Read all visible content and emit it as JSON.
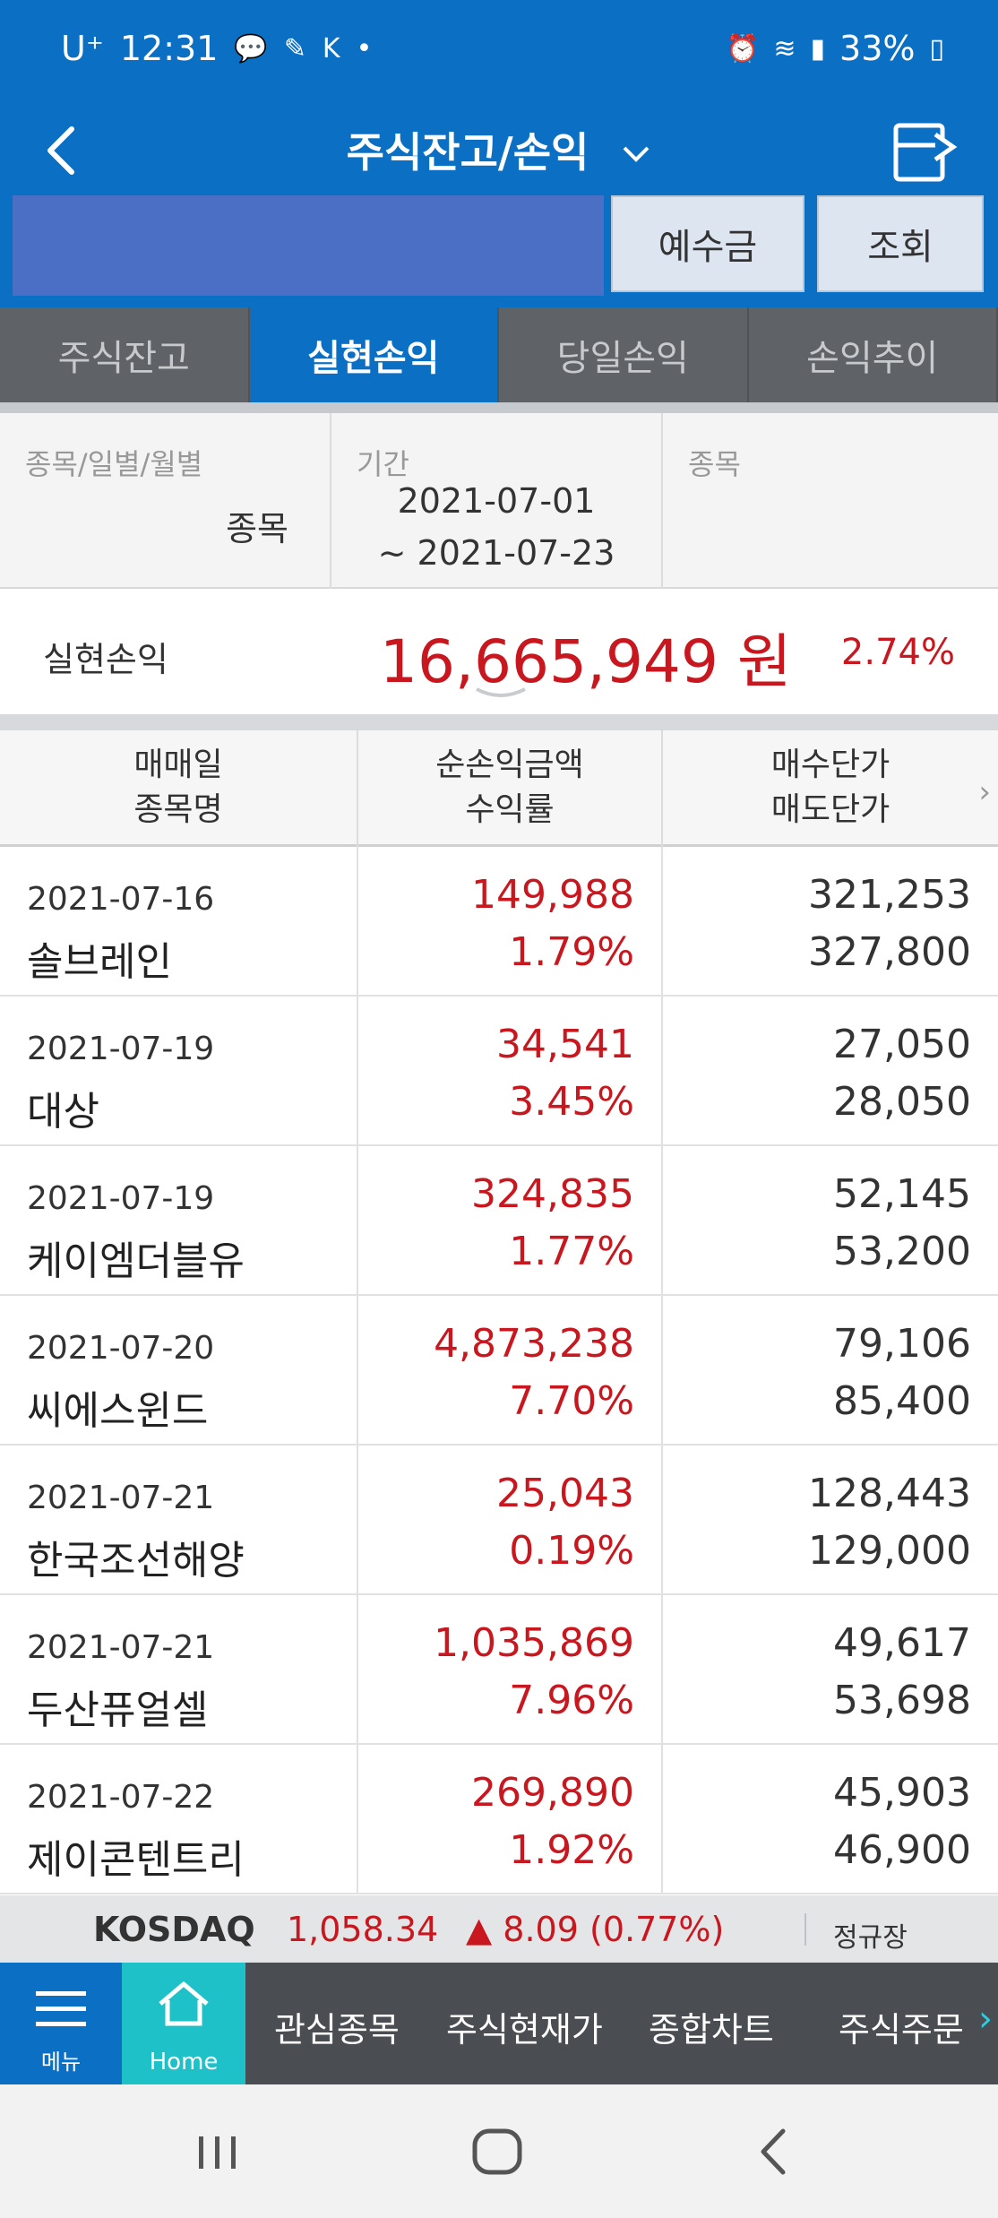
{
  "status_bar": {
    "carrier": "U⁺",
    "time": "12:31",
    "battery": "33%",
    "icons": [
      "talk-icon",
      "pill-icon",
      "ks-icon",
      "dot-icon",
      "alarm-icon",
      "wifi-icon",
      "signal-icon",
      "battery-icon"
    ]
  },
  "header": {
    "title": "주식잔고/손익",
    "chevron": "⌄"
  },
  "account": {
    "deposit_label": "예수금",
    "query_label": "조회"
  },
  "tabs": [
    {
      "label": "주식잔고",
      "active": false
    },
    {
      "label": "실현손익",
      "active": true
    },
    {
      "label": "당일손익",
      "active": false
    },
    {
      "label": "손익추이",
      "active": false
    }
  ],
  "filter": {
    "type_label": "종목/일별/월별",
    "type_value": "종목",
    "period_label": "기간",
    "period_start": "2021-07-01",
    "period_end": "~ 2021-07-23",
    "stock_label": "종목"
  },
  "summary": {
    "label": "실현손익",
    "amount": "16,665,949 원",
    "rate": "2.74%"
  },
  "table": {
    "headers": {
      "col1_line1": "매매일",
      "col1_line2": "종목명",
      "col2_line1": "순손익금액",
      "col2_line2": "수익률",
      "col3_line1": "매수단가",
      "col3_line2": "매도단가",
      "more": "›"
    },
    "rows": [
      {
        "date": "2021-07-16",
        "name": "솔브레인",
        "pl": "149,988",
        "rate": "1.79%",
        "buy": "321,253",
        "sell": "327,800"
      },
      {
        "date": "2021-07-19",
        "name": "대상",
        "pl": "34,541",
        "rate": "3.45%",
        "buy": "27,050",
        "sell": "28,050"
      },
      {
        "date": "2021-07-19",
        "name": "케이엠더블유",
        "pl": "324,835",
        "rate": "1.77%",
        "buy": "52,145",
        "sell": "53,200"
      },
      {
        "date": "2021-07-20",
        "name": "씨에스윈드",
        "pl": "4,873,238",
        "rate": "7.70%",
        "buy": "79,106",
        "sell": "85,400"
      },
      {
        "date": "2021-07-21",
        "name": "한국조선해양",
        "pl": "25,043",
        "rate": "0.19%",
        "buy": "128,443",
        "sell": "129,000"
      },
      {
        "date": "2021-07-21",
        "name": "두산퓨얼셀",
        "pl": "1,035,869",
        "rate": "7.96%",
        "buy": "49,617",
        "sell": "53,698"
      },
      {
        "date": "2021-07-22",
        "name": "제이콘텐트리",
        "pl": "269,890",
        "rate": "1.92%",
        "buy": "45,903",
        "sell": "46,900"
      }
    ]
  },
  "ticker": {
    "index": "KOSDAQ",
    "value": "1,058.34",
    "change": "▲ 8.09 (0.77%)",
    "market": "정규장"
  },
  "bottom_nav": {
    "menu_label": "메뉴",
    "home_label": "Home",
    "items": [
      "관심종목",
      "주식현재가",
      "종합차트",
      "주식주문"
    ],
    "more": "›"
  },
  "colors": {
    "primary": "#0b6fc4",
    "positive": "#c8171e",
    "home": "#1fc1c9"
  }
}
